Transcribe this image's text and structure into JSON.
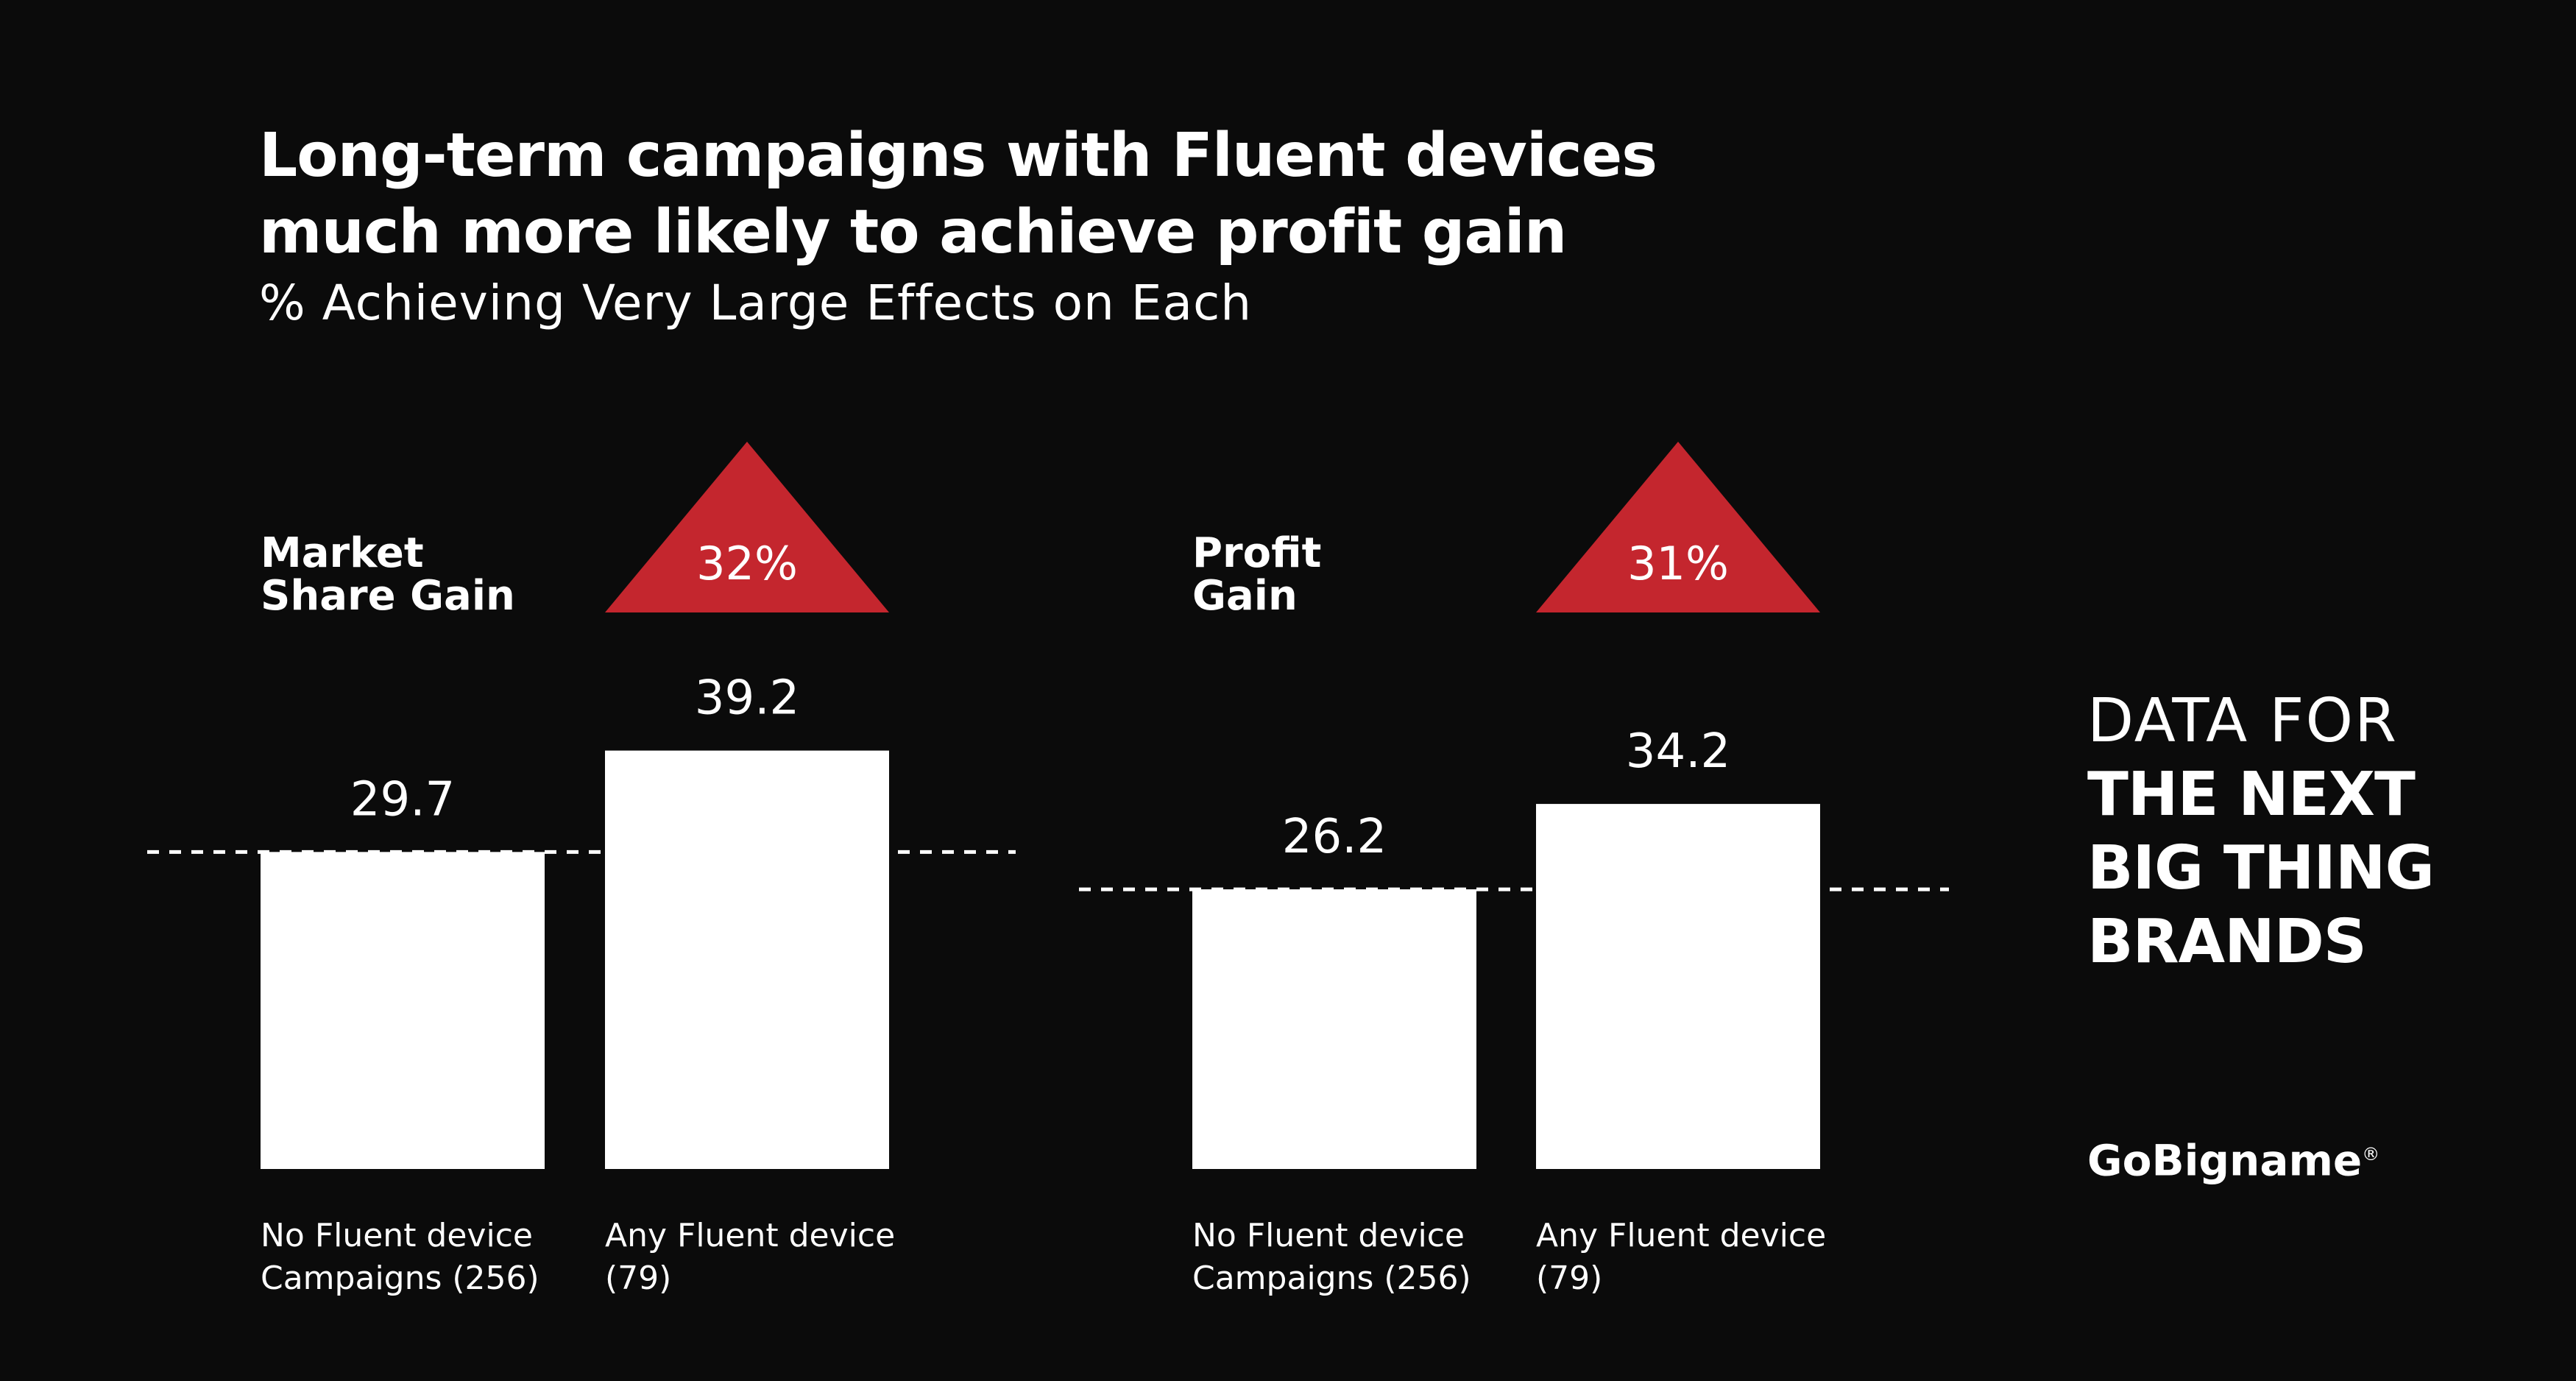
{
  "title_lines": [
    "Long-term campaigns with Fluent devices",
    "much more likely to achieve profit gain"
  ],
  "subtitle": "% Achieving Very Large Effects on Each",
  "brand": {
    "tagline_light": "DATA FOR",
    "tagline_bold": [
      "THE NEXT",
      "BIG THING",
      "BRANDS"
    ],
    "logo": "GoBigname",
    "logo_mark": "®"
  },
  "colors": {
    "background": "#0b0b0b",
    "bar": "#ffffff",
    "uplift": "#c4262e",
    "text": "#ffffff"
  },
  "chart_data": [
    {
      "type": "bar",
      "title_lines": [
        "Market",
        "Share Gain"
      ],
      "categories": [
        [
          "No Fluent device",
          "Campaigns (256)"
        ],
        [
          "Any Fluent device",
          "(79)"
        ]
      ],
      "values": [
        29.7,
        39.2
      ],
      "uplift": "32%",
      "baseline_dashed": true
    },
    {
      "type": "bar",
      "title_lines": [
        "Profit",
        "Gain"
      ],
      "categories": [
        [
          "No Fluent device",
          "Campaigns (256)"
        ],
        [
          "Any Fluent device",
          "(79)"
        ]
      ],
      "values": [
        26.2,
        34.2
      ],
      "uplift": "31%",
      "baseline_dashed": true
    }
  ]
}
